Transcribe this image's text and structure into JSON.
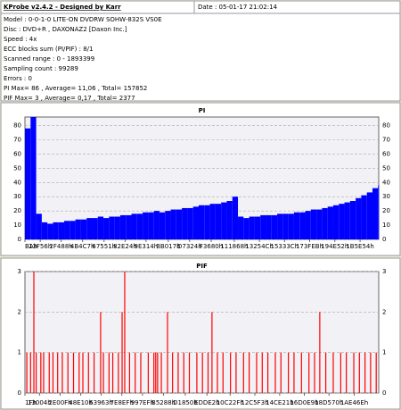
{
  "header": {
    "title": "KProbe v2.4.2 - Designed by Karr",
    "date": "Date : 05-01-17 21:02:14"
  },
  "info": [
    "Model : 0-0-1-0 LITE-ON DVDRW SOHW-832S  VS0E",
    "Disc : DVD+R , DAXONAZ2 [Daxon Inc.]",
    "Speed : 4x",
    "ECC blocks sum (PI/PIF) : 8/1",
    "Scanned range : 0 - 1893399",
    "Sampling count : 99289",
    "Errors : 0",
    "PI Max= 86 , Average= 11,06 , Total= 157852",
    "PIF Max= 3 , Average= 0,17 , Total= 2377"
  ],
  "chart_data": [
    {
      "type": "bar",
      "title": "PI",
      "color": "#0000ff",
      "grid": true,
      "xlim": [
        0,
        1893399
      ],
      "ylim": [
        0,
        86
      ],
      "yticks": [
        0,
        10,
        20,
        30,
        40,
        50,
        60,
        70,
        80
      ],
      "xticks": [
        {
          "value": 186,
          "label": "BAh"
        },
        {
          "value": 81750,
          "label": "13F56h"
        },
        {
          "value": 193672,
          "label": "2F488h"
        },
        {
          "value": 308423,
          "label": "4B4C7h"
        },
        {
          "value": 423249,
          "label": "67551h"
        },
        {
          "value": 536100,
          "label": "82E24h"
        },
        {
          "value": 647956,
          "label": "9E314h"
        },
        {
          "value": 766999,
          "label": "BB017h"
        },
        {
          "value": 881444,
          "label": "D7324h"
        },
        {
          "value": 996992,
          "label": "F3680h"
        },
        {
          "value": 1120360,
          "label": "111868h"
        },
        {
          "value": 1254732,
          "label": "13254Ch"
        },
        {
          "value": 1389372,
          "label": "15333Ch"
        },
        {
          "value": 1523691,
          "label": "173FEBh"
        },
        {
          "value": 1658450,
          "label": "194E52h"
        },
        {
          "value": 1793620,
          "label": "1B5E54h"
        }
      ],
      "x": [
        0,
        30000,
        60000,
        90000,
        120000,
        150000,
        180000,
        210000,
        240000,
        270000,
        300000,
        330000,
        360000,
        390000,
        420000,
        450000,
        480000,
        510000,
        540000,
        570000,
        600000,
        630000,
        660000,
        690000,
        720000,
        750000,
        780000,
        810000,
        840000,
        870000,
        900000,
        930000,
        960000,
        990000,
        1020000,
        1050000,
        1080000,
        1110000,
        1140000,
        1170000,
        1200000,
        1230000,
        1260000,
        1290000,
        1320000,
        1350000,
        1380000,
        1410000,
        1440000,
        1470000,
        1500000,
        1530000,
        1560000,
        1590000,
        1620000,
        1650000,
        1680000,
        1710000,
        1740000,
        1770000,
        1800000,
        1830000,
        1860000,
        1890000
      ],
      "values": [
        78,
        86,
        18,
        12,
        11,
        12,
        12,
        13,
        13,
        14,
        14,
        15,
        15,
        16,
        15,
        16,
        16,
        17,
        17,
        18,
        18,
        19,
        19,
        20,
        19,
        20,
        21,
        21,
        22,
        22,
        23,
        24,
        24,
        25,
        25,
        26,
        27,
        30,
        16,
        15,
        16,
        16,
        17,
        17,
        17,
        18,
        18,
        18,
        19,
        19,
        20,
        21,
        21,
        22,
        23,
        24,
        25,
        26,
        27,
        29,
        31,
        33,
        36,
        38
      ]
    },
    {
      "type": "stem",
      "title": "PIF",
      "color": "#ff0000",
      "grid": true,
      "xlim": [
        0,
        1893399
      ],
      "ylim": [
        0,
        3
      ],
      "yticks": [
        0,
        1,
        2,
        3
      ],
      "xticks": [
        {
          "value": 31,
          "label": "1Fh"
        },
        {
          "value": 77828,
          "label": "13004h"
        },
        {
          "value": 188431,
          "label": "2E00Fh"
        },
        {
          "value": 298512,
          "label": "48E10h"
        },
        {
          "value": 407907,
          "label": "63963h"
        },
        {
          "value": 518383,
          "label": "7E8EFh"
        },
        {
          "value": 628719,
          "label": "997EFh"
        },
        {
          "value": 742024,
          "label": "B5288h"
        },
        {
          "value": 858192,
          "label": "D1850h"
        },
        {
          "value": 974306,
          "label": "EDDE2h"
        },
        {
          "value": 1098287,
          "label": "10C22Fh"
        },
        {
          "value": 1230323,
          "label": "12C5F3h"
        },
        {
          "value": 1363489,
          "label": "14CE21h"
        },
        {
          "value": 1495273,
          "label": "16D0E9h"
        },
        {
          "value": 1627504,
          "label": "18D570h"
        },
        {
          "value": 1762414,
          "label": "1AE46Eh"
        }
      ],
      "x": [
        10000,
        30000,
        47700,
        60000,
        85000,
        100000,
        130000,
        150000,
        175000,
        200000,
        230000,
        260000,
        290000,
        310000,
        340000,
        370000,
        405000,
        420000,
        450000,
        470000,
        500000,
        520000,
        534000,
        560000,
        590000,
        620000,
        660000,
        690000,
        700000,
        710000,
        730000,
        763000,
        790000,
        820000,
        850000,
        880000,
        920000,
        950000,
        980000,
        1001000,
        1030000,
        1060000,
        1100000,
        1130000,
        1170000,
        1200000,
        1240000,
        1270000,
        1300000,
        1340000,
        1370000,
        1410000,
        1440000,
        1480000,
        1520000,
        1550000,
        1578000,
        1610000,
        1650000,
        1690000,
        1720000,
        1760000,
        1790000,
        1820000,
        1850000,
        1880000
      ],
      "values": [
        1,
        1,
        3,
        1,
        1,
        1,
        1,
        1,
        1,
        1,
        1,
        1,
        1,
        1,
        1,
        1,
        2,
        1,
        1,
        1,
        1,
        2,
        3,
        1,
        1,
        1,
        1,
        1,
        1,
        1,
        1,
        2,
        1,
        1,
        1,
        1,
        1,
        1,
        1,
        2,
        1,
        1,
        1,
        1,
        1,
        1,
        1,
        1,
        1,
        1,
        1,
        1,
        1,
        1,
        1,
        1,
        2,
        1,
        1,
        1,
        1,
        1,
        1,
        1,
        1,
        1
      ]
    }
  ]
}
